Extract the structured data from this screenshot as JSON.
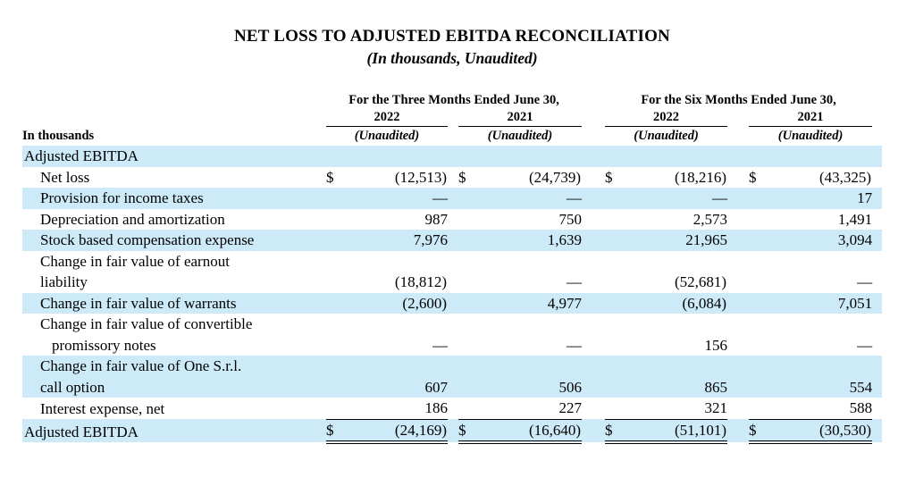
{
  "page": {
    "title": "NET LOSS TO ADJUSTED EBITDA RECONCILIATION",
    "subtitle": "(In thousands, Unaudited)"
  },
  "colors": {
    "row_band": "#cdeaf8",
    "text": "#000000"
  },
  "table": {
    "corner_label": "In thousands",
    "unaudited_label": "(Unaudited)",
    "currency_symbol": "$",
    "col_groups": [
      {
        "label": "For the Three Months Ended June 30,",
        "years": [
          "2022",
          "2021"
        ]
      },
      {
        "label": "For the Six Months Ended June 30,",
        "years": [
          "2022",
          "2021"
        ]
      }
    ],
    "rows": [
      {
        "label_lines": [
          "Adjusted EBITDA"
        ],
        "indent": 0,
        "shaded": true,
        "dollar": false,
        "values": null,
        "rule": "none"
      },
      {
        "label_lines": [
          "Net loss"
        ],
        "indent": 1,
        "shaded": false,
        "dollar": true,
        "values": [
          "(12,513)",
          "(24,739)",
          "(18,216)",
          "(43,325)"
        ],
        "rule": "none"
      },
      {
        "label_lines": [
          "Provision for income taxes"
        ],
        "indent": 1,
        "shaded": true,
        "dollar": false,
        "values": [
          "—",
          "—",
          "—",
          "17"
        ],
        "rule": "none"
      },
      {
        "label_lines": [
          "Depreciation and amortization"
        ],
        "indent": 1,
        "shaded": false,
        "dollar": false,
        "values": [
          "987",
          "750",
          "2,573",
          "1,491"
        ],
        "rule": "none"
      },
      {
        "label_lines": [
          "Stock based compensation expense"
        ],
        "indent": 1,
        "shaded": true,
        "dollar": false,
        "values": [
          "7,976",
          "1,639",
          "21,965",
          "3,094"
        ],
        "rule": "none"
      },
      {
        "label_lines": [
          "Change in fair value of earnout",
          "liability"
        ],
        "line2_extra_indent": false,
        "indent": 1,
        "shaded": false,
        "dollar": false,
        "values": [
          "(18,812)",
          "—",
          "(52,681)",
          "—"
        ],
        "rule": "none"
      },
      {
        "label_lines": [
          "Change in fair value of warrants"
        ],
        "indent": 1,
        "shaded": true,
        "dollar": false,
        "values": [
          "(2,600)",
          "4,977",
          "(6,084)",
          "7,051"
        ],
        "rule": "none"
      },
      {
        "label_lines": [
          "Change in fair value of convertible",
          "promissory notes"
        ],
        "line2_extra_indent": true,
        "indent": 1,
        "shaded": false,
        "dollar": false,
        "values": [
          "—",
          "—",
          "156",
          "—"
        ],
        "rule": "none"
      },
      {
        "label_lines": [
          "Change in fair value of One S.r.l.",
          "call option"
        ],
        "line2_extra_indent": false,
        "indent": 1,
        "shaded": true,
        "dollar": false,
        "values": [
          "607",
          "506",
          "865",
          "554"
        ],
        "rule": "none"
      },
      {
        "label_lines": [
          "Interest expense, net"
        ],
        "indent": 1,
        "shaded": false,
        "dollar": false,
        "values": [
          "186",
          "227",
          "321",
          "588"
        ],
        "rule": "single"
      },
      {
        "label_lines": [
          "Adjusted EBITDA"
        ],
        "indent": 0,
        "shaded": true,
        "dollar": true,
        "values": [
          "(24,169)",
          "(16,640)",
          "(51,101)",
          "(30,530)"
        ],
        "rule": "double"
      }
    ]
  }
}
